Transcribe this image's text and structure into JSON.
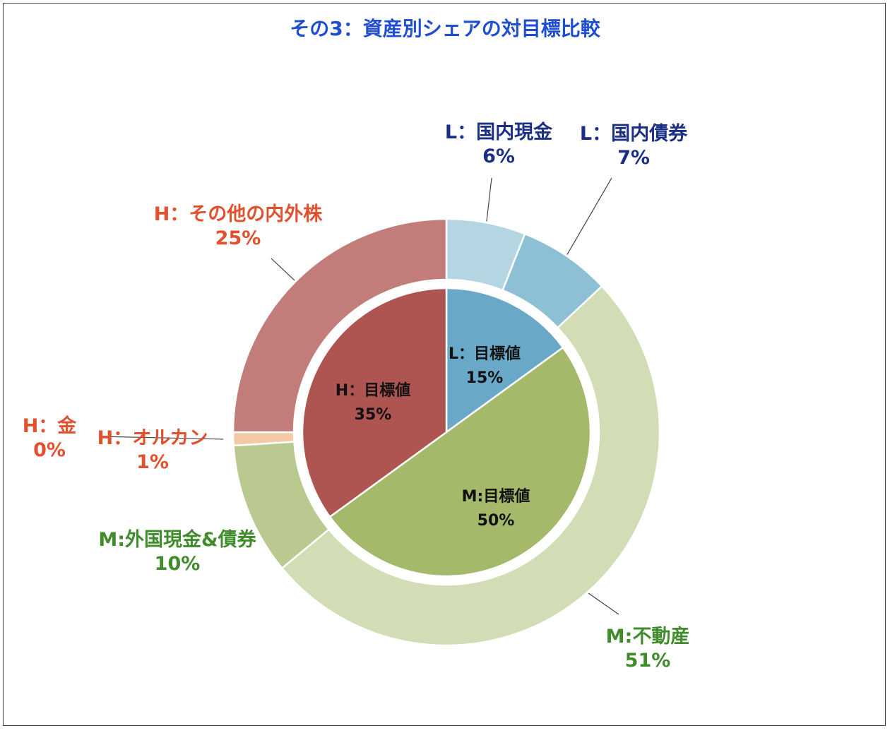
{
  "chart_data": {
    "type": "pie",
    "variant": "double-donut",
    "title": "その3：資産別シェアの対目標比較",
    "colors": {
      "title": "#1f4fd0",
      "label_L": "#1b2f86",
      "label_H": "#e2512e",
      "label_M": "#3f8c2b"
    },
    "inner_ring": [
      {
        "name": "L：目標値",
        "value": 15,
        "value_label": "15%",
        "color": "#69a9c7"
      },
      {
        "name": "M:目標値",
        "value": 50,
        "value_label": "50%",
        "color": "#a4b96a"
      },
      {
        "name": "H：目標値",
        "value": 35,
        "value_label": "35%",
        "color": "#ae5451"
      }
    ],
    "outer_ring": [
      {
        "name": "L：国内現金",
        "value": 6,
        "value_label": "6%",
        "color": "#b3d6e2",
        "group": "L"
      },
      {
        "name": "L：国内債券",
        "value": 7,
        "value_label": "7%",
        "color": "#8ec0d5",
        "group": "L"
      },
      {
        "name": "M:不動産",
        "value": 51,
        "value_label": "51%",
        "color": "#d2ddb5",
        "group": "M"
      },
      {
        "name": "M:外国現金&債券",
        "value": 10,
        "value_label": "10%",
        "color": "#bac98f",
        "group": "M"
      },
      {
        "name": "H：オルカン",
        "value": 1,
        "value_label": "1%",
        "color": "#f4c9a6",
        "group": "H"
      },
      {
        "name": "H：金",
        "value": 0,
        "value_label": "0%",
        "color": "#e0d2b0",
        "group": "H"
      },
      {
        "name": "H：その他の内外株",
        "value": 25,
        "value_label": "25%",
        "color": "#c27d7a",
        "group": "H"
      }
    ]
  }
}
